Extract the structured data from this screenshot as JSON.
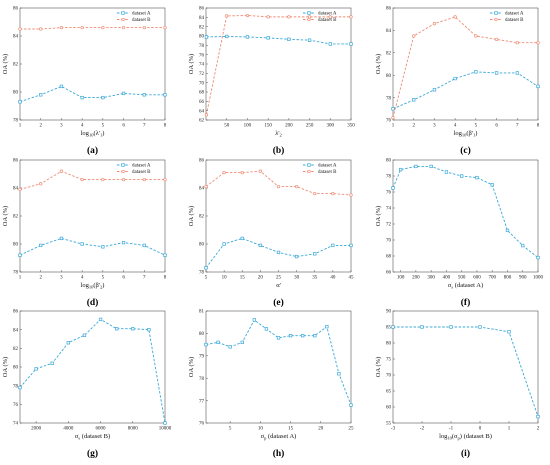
{
  "chart_data": [
    {
      "type": "line",
      "panel_label": "(a)",
      "xlabel": "log10(λ'1)",
      "ylabel": "OA (%)",
      "xlim": [
        1,
        8
      ],
      "xticks": [
        "1",
        "2",
        "3",
        "4",
        "5",
        "6",
        "7",
        "8"
      ],
      "ylim": [
        78,
        86
      ],
      "yticks": [
        "78",
        "80",
        "82",
        "84",
        "86"
      ],
      "legend_position": "top-right",
      "series": [
        {
          "name": "dataset A",
          "color": "#3aa8d8",
          "marker": "square",
          "x": [
            1,
            2,
            3,
            4,
            5,
            6,
            7,
            8
          ],
          "y": [
            79.3,
            79.8,
            80.4,
            79.6,
            79.6,
            79.9,
            79.8,
            79.8
          ]
        },
        {
          "name": "dataset B",
          "color": "#f08c74",
          "marker": "circle",
          "x": [
            1,
            2,
            3,
            4,
            5,
            6,
            7,
            8
          ],
          "y": [
            84.5,
            84.5,
            84.6,
            84.6,
            84.6,
            84.6,
            84.6,
            84.6
          ]
        }
      ]
    },
    {
      "type": "line",
      "panel_label": "(b)",
      "xlabel": "λ'2",
      "ylabel": "OA (%)",
      "xlim": [
        0,
        350
      ],
      "xticks": [
        "50",
        "100",
        "150",
        "200",
        "250",
        "300",
        "350"
      ],
      "ylim": [
        62,
        86
      ],
      "yticks": [
        "62",
        "64",
        "66",
        "68",
        "70",
        "72",
        "74",
        "76",
        "78",
        "80",
        "82",
        "84",
        "86"
      ],
      "legend_position": "top-right",
      "series": [
        {
          "name": "dataset A",
          "color": "#3aa8d8",
          "marker": "square",
          "x": [
            1,
            50,
            100,
            150,
            200,
            250,
            300,
            350
          ],
          "y": [
            79.8,
            79.9,
            79.8,
            79.6,
            79.3,
            79.1,
            78.3,
            78.3
          ]
        },
        {
          "name": "dataset B",
          "color": "#f08c74",
          "marker": "circle",
          "x": [
            1,
            50,
            100,
            150,
            200,
            250,
            300,
            350
          ],
          "y": [
            63.1,
            84.3,
            84.4,
            84.1,
            84.1,
            84.1,
            84.1,
            84.1
          ]
        }
      ]
    },
    {
      "type": "line",
      "panel_label": "(c)",
      "xlabel": "log10(β'1)",
      "ylabel": "OA (%)",
      "xlim": [
        1,
        8
      ],
      "xticks": [
        "1",
        "2",
        "3",
        "4",
        "5",
        "6",
        "7",
        "8"
      ],
      "ylim": [
        76,
        86
      ],
      "yticks": [
        "76",
        "78",
        "80",
        "82",
        "84",
        "86"
      ],
      "legend_position": "top-right",
      "series": [
        {
          "name": "dataset A",
          "color": "#3aa8d8",
          "marker": "square",
          "x": [
            1,
            2,
            3,
            4,
            5,
            6,
            7,
            8
          ],
          "y": [
            77.0,
            77.8,
            78.7,
            79.7,
            80.3,
            80.2,
            80.2,
            79.0
          ]
        },
        {
          "name": "dataset B",
          "color": "#f08c74",
          "marker": "circle",
          "x": [
            1,
            2,
            3,
            4,
            5,
            6,
            7,
            8
          ],
          "y": [
            76.2,
            83.5,
            84.6,
            85.2,
            83.5,
            83.2,
            82.9,
            82.9
          ]
        }
      ]
    },
    {
      "type": "line",
      "panel_label": "(d)",
      "xlabel": "log10(β'2)",
      "ylabel": "OA (%)",
      "xlim": [
        1,
        8
      ],
      "xticks": [
        "1",
        "2",
        "3",
        "4",
        "5",
        "6",
        "7",
        "8"
      ],
      "ylim": [
        78,
        86
      ],
      "yticks": [
        "78",
        "80",
        "82",
        "84",
        "86"
      ],
      "legend_position": "top-right",
      "series": [
        {
          "name": "dataset A",
          "color": "#3aa8d8",
          "marker": "square",
          "x": [
            1,
            2,
            3,
            4,
            5,
            6,
            7,
            8
          ],
          "y": [
            79.2,
            79.9,
            80.4,
            80.0,
            79.8,
            80.1,
            79.9,
            79.2
          ]
        },
        {
          "name": "dataset B",
          "color": "#f08c74",
          "marker": "circle",
          "x": [
            1,
            2,
            3,
            4,
            5,
            6,
            7,
            8
          ],
          "y": [
            83.9,
            84.3,
            85.2,
            84.6,
            84.6,
            84.6,
            84.6,
            84.6
          ]
        }
      ]
    },
    {
      "type": "line",
      "panel_label": "(e)",
      "xlabel": "α'",
      "ylabel": "OA (%)",
      "xlim": [
        5,
        45
      ],
      "xticks": [
        "5",
        "10",
        "15",
        "20",
        "25",
        "30",
        "35",
        "40",
        "45"
      ],
      "ylim": [
        78,
        86
      ],
      "yticks": [
        "78",
        "80",
        "82",
        "84",
        "86"
      ],
      "legend_position": "top-right",
      "series": [
        {
          "name": "dataset A",
          "color": "#3aa8d8",
          "marker": "square",
          "x": [
            5,
            10,
            15,
            20,
            25,
            30,
            35,
            40,
            45
          ],
          "y": [
            78.3,
            80.0,
            80.4,
            79.9,
            79.4,
            79.1,
            79.3,
            79.9,
            79.9
          ]
        },
        {
          "name": "dataset B",
          "color": "#f08c74",
          "marker": "circle",
          "x": [
            5,
            10,
            15,
            20,
            25,
            30,
            35,
            40,
            45
          ],
          "y": [
            84.1,
            85.1,
            85.1,
            85.2,
            84.1,
            84.1,
            83.6,
            83.6,
            83.5
          ]
        }
      ]
    },
    {
      "type": "line",
      "panel_label": "(f)",
      "xlabel": "σs (dataset A)",
      "ylabel": "OA (%)",
      "xlim": [
        50,
        1000
      ],
      "xticks": [
        "100",
        "200",
        "300",
        "400",
        "500",
        "600",
        "700",
        "800",
        "900",
        "1000"
      ],
      "ylim": [
        66,
        80
      ],
      "yticks": [
        "66",
        "68",
        "70",
        "72",
        "74",
        "76",
        "78",
        "80"
      ],
      "series": [
        {
          "name": "",
          "color": "#3aa8d8",
          "marker": "square",
          "x": [
            50,
            100,
            200,
            300,
            400,
            500,
            600,
            700,
            800,
            900,
            1000
          ],
          "y": [
            76.5,
            78.8,
            79.2,
            79.2,
            78.5,
            78.0,
            77.8,
            76.9,
            71.2,
            69.3,
            67.8
          ]
        }
      ]
    },
    {
      "type": "line",
      "panel_label": "(g)",
      "xlabel": "σs (dataset B)",
      "ylabel": "OA (%)",
      "xlim": [
        1000,
        10000
      ],
      "xticks": [
        "2000",
        "4000",
        "6000",
        "8000",
        "10000"
      ],
      "ylim": [
        74,
        86
      ],
      "yticks": [
        "74",
        "76",
        "78",
        "80",
        "82",
        "84",
        "86"
      ],
      "series": [
        {
          "name": "",
          "color": "#3aa8d8",
          "marker": "square",
          "x": [
            1000,
            2000,
            3000,
            4000,
            5000,
            6000,
            7000,
            8000,
            9000,
            10000
          ],
          "y": [
            77.8,
            79.8,
            80.4,
            82.6,
            83.4,
            85.1,
            84.1,
            84.1,
            84.0,
            74.0
          ]
        }
      ]
    },
    {
      "type": "line",
      "panel_label": "(h)",
      "xlabel": "σp (dataset A)",
      "ylabel": "OA (%)",
      "xlim": [
        1,
        25
      ],
      "xticks": [
        "5",
        "10",
        "15",
        "20",
        "25"
      ],
      "ylim": [
        76,
        81
      ],
      "yticks": [
        "76",
        "77",
        "78",
        "79",
        "80",
        "81"
      ],
      "series": [
        {
          "name": "",
          "color": "#3aa8d8",
          "marker": "square",
          "x": [
            1,
            3,
            5,
            7,
            9,
            11,
            13,
            15,
            17,
            19,
            21,
            23,
            25
          ],
          "y": [
            79.5,
            79.6,
            79.4,
            79.6,
            80.6,
            80.2,
            79.8,
            79.9,
            79.9,
            79.9,
            80.3,
            78.2,
            76.8
          ]
        }
      ]
    },
    {
      "type": "line",
      "panel_label": "(i)",
      "xlabel": "log10(σp) (dataset B)",
      "ylabel": "OA (%)",
      "xlim": [
        -3,
        2
      ],
      "xticks": [
        "-3",
        "-2",
        "-1",
        "0",
        "1",
        "2"
      ],
      "ylim": [
        55,
        90
      ],
      "yticks": [
        "55",
        "60",
        "65",
        "70",
        "75",
        "80",
        "85",
        "90"
      ],
      "series": [
        {
          "name": "",
          "color": "#3aa8d8",
          "marker": "square",
          "x": [
            -3,
            -2,
            -1,
            0,
            1,
            2
          ],
          "y": [
            85.0,
            85.0,
            85.0,
            85.0,
            83.5,
            57.0
          ]
        }
      ]
    }
  ]
}
